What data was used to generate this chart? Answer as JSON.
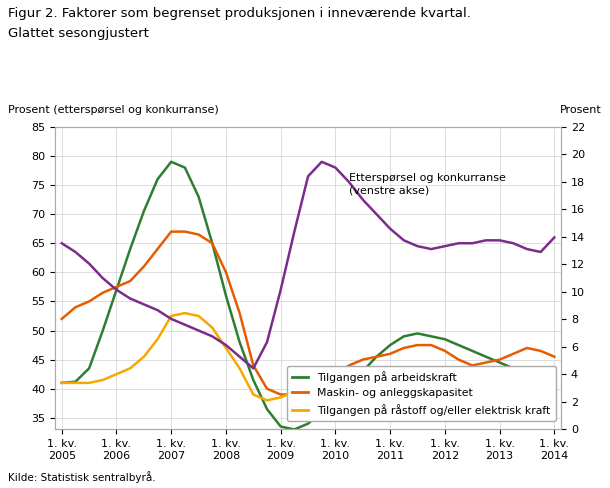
{
  "title_line1": "Figur 2. Faktorer som begrenset produksjonen i inneværende kvartal.",
  "title_line2": "Glattet sesongjustert",
  "ylabel_left": "Prosent (etterspørsel og konkurranse)",
  "ylabel_right": "Prosent",
  "source": "Kilde: Statistisk sentralbyrå.",
  "annotation": "Etterspørsel og konkurranse\n(venstre akse)",
  "ylim_left": [
    33,
    85
  ],
  "ylim_right": [
    0,
    22
  ],
  "yticks_left": [
    35,
    40,
    45,
    50,
    55,
    60,
    65,
    70,
    75,
    80,
    85
  ],
  "yticks_right": [
    0,
    2,
    4,
    6,
    8,
    10,
    12,
    14,
    16,
    18,
    20,
    22
  ],
  "x_labels": [
    "1. kv.\n2005",
    "1. kv.\n2006",
    "1. kv.\n2007",
    "1. kv.\n2008",
    "1. kv.\n2009",
    "1. kv.\n2010",
    "1. kv.\n2011",
    "1. kv.\n2012",
    "1. kv.\n2013",
    "1. kv.\n2014"
  ],
  "colors": {
    "arbeidskraft": "#2e7d32",
    "maskin": "#e65c00",
    "rastoff": "#f5a800",
    "ettersporsel": "#7b2d8b"
  },
  "arbeidskraft": [
    41.0,
    41.2,
    43.5,
    50.0,
    57.0,
    64.0,
    70.5,
    76.0,
    79.0,
    78.0,
    73.0,
    65.0,
    56.0,
    48.0,
    41.5,
    36.5,
    33.5,
    33.0,
    34.0,
    36.0,
    38.5,
    41.0,
    43.0,
    45.5,
    47.5,
    49.0,
    49.5,
    49.0,
    48.5,
    47.5,
    46.5,
    45.5,
    44.5,
    43.5,
    42.5,
    41.5,
    40.5
  ],
  "maskin": [
    52.0,
    54.0,
    55.0,
    56.5,
    57.5,
    58.5,
    61.0,
    64.0,
    67.0,
    67.0,
    66.5,
    65.0,
    60.0,
    53.0,
    44.0,
    40.0,
    39.0,
    39.0,
    40.0,
    41.0,
    42.5,
    44.0,
    45.0,
    45.5,
    46.0,
    47.0,
    47.5,
    47.5,
    46.5,
    45.0,
    44.0,
    44.5,
    45.0,
    46.0,
    47.0,
    46.5,
    45.5
  ],
  "rastoff": [
    41.0,
    41.0,
    41.0,
    41.5,
    42.5,
    43.5,
    45.5,
    48.5,
    52.5,
    53.0,
    52.5,
    50.5,
    47.0,
    43.5,
    39.0,
    38.0,
    38.5,
    39.5,
    40.5,
    41.0,
    40.5,
    39.5,
    38.5,
    39.0,
    40.0,
    41.0,
    41.0,
    41.0,
    40.5,
    39.0,
    36.5,
    35.0,
    35.0,
    36.0,
    39.0,
    39.0,
    38.0
  ],
  "ettersporsel": [
    65.0,
    63.5,
    61.5,
    59.0,
    57.0,
    55.5,
    54.5,
    53.5,
    52.0,
    51.0,
    50.0,
    49.0,
    47.5,
    45.5,
    43.5,
    48.0,
    57.0,
    67.0,
    76.5,
    79.0,
    78.0,
    75.5,
    72.5,
    70.0,
    67.5,
    65.5,
    64.5,
    64.0,
    64.5,
    65.0,
    65.0,
    65.5,
    65.5,
    65.0,
    64.0,
    63.5,
    66.0
  ],
  "n_points": 37,
  "x_tick_idx": [
    0,
    4,
    8,
    12,
    16,
    20,
    24,
    28,
    32,
    36
  ]
}
